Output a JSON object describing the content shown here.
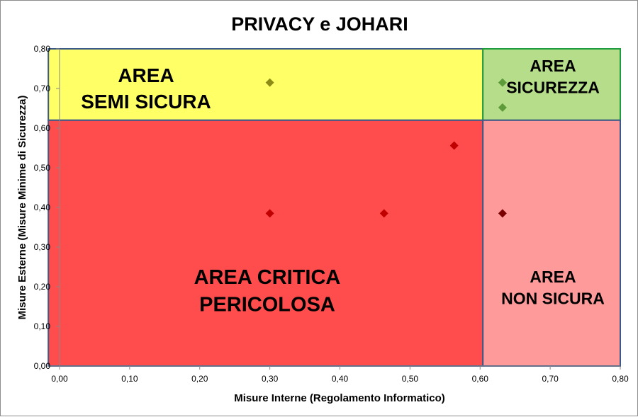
{
  "chart_data": {
    "type": "scatter",
    "title": "PRIVACY e JOHARI",
    "xlabel": "Misure Interne (Regolamento Informatico)",
    "ylabel": "Misure Esterne (Misure Minime di Sicurezza)",
    "xlim": [
      0,
      0.8
    ],
    "ylim": [
      0,
      0.8
    ],
    "x_ticks": [
      "0,00",
      "0,10",
      "0,20",
      "0,30",
      "0,40",
      "0,50",
      "0,60",
      "0,70",
      "0,80"
    ],
    "y_ticks": [
      "0,00",
      "0,10",
      "0,20",
      "0,30",
      "0,40",
      "0,50",
      "0,60",
      "0,70",
      "0,80"
    ],
    "grid": false,
    "legend": "none",
    "zones": [
      {
        "label_lines": [
          "AREA",
          "SEMI SICURA"
        ],
        "x": [
          -0.016,
          0.604
        ],
        "y": [
          0.62,
          0.8
        ],
        "color": "#ffff66",
        "edge": "#3b5a8a"
      },
      {
        "label_lines": [
          "AREA",
          "SICUREZZA"
        ],
        "x": [
          0.604,
          0.8
        ],
        "y": [
          0.62,
          0.8
        ],
        "color": "#b6dd8a",
        "edge": "#1e9c3e"
      },
      {
        "label_lines": [
          "AREA CRITICA",
          "PERICOLOSA"
        ],
        "x": [
          -0.016,
          0.604
        ],
        "y": [
          0,
          0.62
        ],
        "color": "#ff4d4d",
        "edge": "#3b5a8a"
      },
      {
        "label_lines": [
          "AREA",
          "NON SICURA"
        ],
        "x": [
          0.604,
          0.8
        ],
        "y": [
          0,
          0.62
        ],
        "color": "#ff9a9a",
        "edge": "#3b5a8a"
      }
    ],
    "points": [
      {
        "x": 0.3,
        "y": 0.715,
        "color": "#8c8c16"
      },
      {
        "x": 0.632,
        "y": 0.715,
        "color": "#5c9a3a"
      },
      {
        "x": 0.632,
        "y": 0.652,
        "color": "#5c9a3a"
      },
      {
        "x": 0.563,
        "y": 0.556,
        "color": "#c00000"
      },
      {
        "x": 0.3,
        "y": 0.385,
        "color": "#c00000"
      },
      {
        "x": 0.463,
        "y": 0.385,
        "color": "#c00000"
      },
      {
        "x": 0.632,
        "y": 0.385,
        "color": "#7a0000"
      }
    ]
  }
}
